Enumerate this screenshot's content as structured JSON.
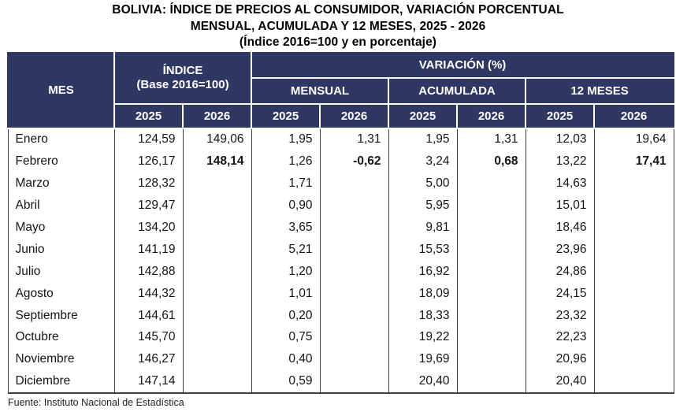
{
  "title": {
    "line1": "BOLIVIA: ÍNDICE DE PRECIOS AL CONSUMIDOR, VARIACIÓN PORCENTUAL",
    "line2": "MENSUAL, ACUMULADA Y 12 MESES, 2025 - 2026",
    "line3": "(Índice 2016=100 y en porcentaje)"
  },
  "table": {
    "headers": {
      "mes": "MES",
      "indice_line1": "ÍNDICE",
      "indice_line2": "(Base 2016=100)",
      "variacion": "VARIACIÓN (%)",
      "mensual": "MENSUAL",
      "acumulada": "ACUMULADA",
      "doce_meses": "12 MESES",
      "years": [
        "2025",
        "2026"
      ]
    },
    "rows": [
      {
        "mes": "Enero",
        "indice_2025": "124,59",
        "indice_2026": "149,06",
        "mensual_2025": "1,95",
        "mensual_2026": "1,31",
        "acumulada_2025": "1,95",
        "acumulada_2026": "1,31",
        "doce_2025": "12,03",
        "doce_2026": "19,64",
        "bold": []
      },
      {
        "mes": "Febrero",
        "indice_2025": "126,17",
        "indice_2026": "148,14",
        "mensual_2025": "1,26",
        "mensual_2026": "-0,62",
        "acumulada_2025": "3,24",
        "acumulada_2026": "0,68",
        "doce_2025": "13,22",
        "doce_2026": "17,41",
        "bold": [
          "indice_2026",
          "mensual_2026",
          "acumulada_2026",
          "doce_2026"
        ]
      },
      {
        "mes": "Marzo",
        "indice_2025": "128,32",
        "indice_2026": "",
        "mensual_2025": "1,71",
        "mensual_2026": "",
        "acumulada_2025": "5,00",
        "acumulada_2026": "",
        "doce_2025": "14,63",
        "doce_2026": "",
        "bold": []
      },
      {
        "mes": "Abril",
        "indice_2025": "129,47",
        "indice_2026": "",
        "mensual_2025": "0,90",
        "mensual_2026": "",
        "acumulada_2025": "5,95",
        "acumulada_2026": "",
        "doce_2025": "15,01",
        "doce_2026": "",
        "bold": []
      },
      {
        "mes": "Mayo",
        "indice_2025": "134,20",
        "indice_2026": "",
        "mensual_2025": "3,65",
        "mensual_2026": "",
        "acumulada_2025": "9,81",
        "acumulada_2026": "",
        "doce_2025": "18,46",
        "doce_2026": "",
        "bold": []
      },
      {
        "mes": "Junio",
        "indice_2025": "141,19",
        "indice_2026": "",
        "mensual_2025": "5,21",
        "mensual_2026": "",
        "acumulada_2025": "15,53",
        "acumulada_2026": "",
        "doce_2025": "23,96",
        "doce_2026": "",
        "bold": []
      },
      {
        "mes": "Julio",
        "indice_2025": "142,88",
        "indice_2026": "",
        "mensual_2025": "1,20",
        "mensual_2026": "",
        "acumulada_2025": "16,92",
        "acumulada_2026": "",
        "doce_2025": "24,86",
        "doce_2026": "",
        "bold": []
      },
      {
        "mes": "Agosto",
        "indice_2025": "144,32",
        "indice_2026": "",
        "mensual_2025": "1,01",
        "mensual_2026": "",
        "acumulada_2025": "18,09",
        "acumulada_2026": "",
        "doce_2025": "24,15",
        "doce_2026": "",
        "bold": []
      },
      {
        "mes": "Septiembre",
        "indice_2025": "144,61",
        "indice_2026": "",
        "mensual_2025": "0,20",
        "mensual_2026": "",
        "acumulada_2025": "18,33",
        "acumulada_2026": "",
        "doce_2025": "23,32",
        "doce_2026": "",
        "bold": []
      },
      {
        "mes": "Octubre",
        "indice_2025": "145,70",
        "indice_2026": "",
        "mensual_2025": "0,75",
        "mensual_2026": "",
        "acumulada_2025": "19,22",
        "acumulada_2026": "",
        "doce_2025": "22,23",
        "doce_2026": "",
        "bold": []
      },
      {
        "mes": "Noviembre",
        "indice_2025": "146,27",
        "indice_2026": "",
        "mensual_2025": "0,40",
        "mensual_2026": "",
        "acumulada_2025": "19,69",
        "acumulada_2026": "",
        "doce_2025": "20,96",
        "doce_2026": "",
        "bold": []
      },
      {
        "mes": "Diciembre",
        "indice_2025": "147,14",
        "indice_2026": "",
        "mensual_2025": "0,59",
        "mensual_2026": "",
        "acumulada_2025": "20,40",
        "acumulada_2026": "",
        "doce_2025": "20,40",
        "doce_2026": "",
        "bold": []
      }
    ]
  },
  "footer": {
    "source": "Fuente: Instituto Nacional de Estadística"
  },
  "colors": {
    "header_bg": "#2f3763",
    "header_text": "#ffffff",
    "grid_line": "#404040",
    "body_text": "#141414",
    "page_bg": "#ffffff"
  },
  "chart_data": {
    "type": "table",
    "title": "BOLIVIA: ÍNDICE DE PRECIOS AL CONSUMIDOR, VARIACIÓN PORCENTUAL MENSUAL, ACUMULADA Y 12 MESES, 2025 - 2026",
    "subtitle": "(Índice 2016=100 y en porcentaje)",
    "column_groups": [
      "MES",
      "ÍNDICE (Base 2016=100)",
      "VARIACIÓN (%) MENSUAL",
      "VARIACIÓN (%) ACUMULADA",
      "VARIACIÓN (%) 12 MESES"
    ],
    "columns": [
      "MES",
      "INDICE 2025",
      "INDICE 2026",
      "MENSUAL 2025",
      "MENSUAL 2026",
      "ACUMULADA 2025",
      "ACUMULADA 2026",
      "12 MESES 2025",
      "12 MESES 2026"
    ],
    "rows": [
      [
        "Enero",
        124.59,
        149.06,
        1.95,
        1.31,
        1.95,
        1.31,
        12.03,
        19.64
      ],
      [
        "Febrero",
        126.17,
        148.14,
        1.26,
        -0.62,
        3.24,
        0.68,
        13.22,
        17.41
      ],
      [
        "Marzo",
        128.32,
        null,
        1.71,
        null,
        5.0,
        null,
        14.63,
        null
      ],
      [
        "Abril",
        129.47,
        null,
        0.9,
        null,
        5.95,
        null,
        15.01,
        null
      ],
      [
        "Mayo",
        134.2,
        null,
        3.65,
        null,
        9.81,
        null,
        18.46,
        null
      ],
      [
        "Junio",
        141.19,
        null,
        5.21,
        null,
        15.53,
        null,
        23.96,
        null
      ],
      [
        "Julio",
        142.88,
        null,
        1.2,
        null,
        16.92,
        null,
        24.86,
        null
      ],
      [
        "Agosto",
        144.32,
        null,
        1.01,
        null,
        18.09,
        null,
        24.15,
        null
      ],
      [
        "Septiembre",
        144.61,
        null,
        0.2,
        null,
        18.33,
        null,
        23.32,
        null
      ],
      [
        "Octubre",
        145.7,
        null,
        0.75,
        null,
        19.22,
        null,
        22.23,
        null
      ],
      [
        "Noviembre",
        146.27,
        null,
        0.4,
        null,
        19.69,
        null,
        20.96,
        null
      ],
      [
        "Diciembre",
        147.14,
        null,
        0.59,
        null,
        20.4,
        null,
        20.4,
        null
      ]
    ],
    "source": "Fuente: Instituto Nacional de Estadística"
  }
}
